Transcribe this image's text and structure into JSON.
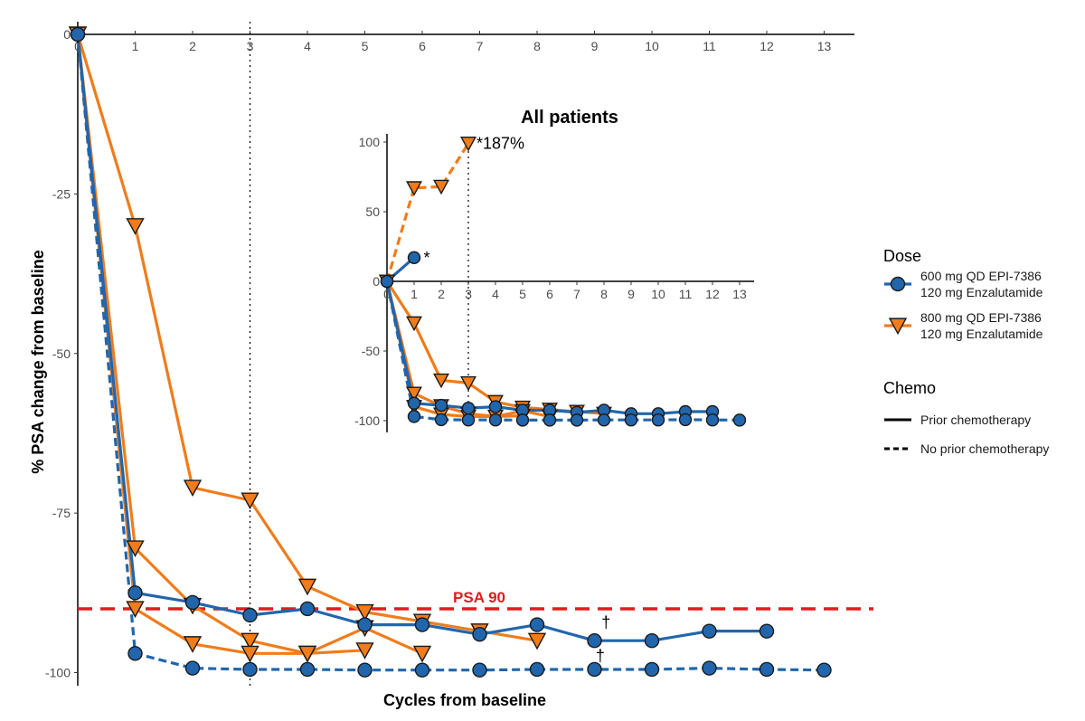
{
  "chart_data": {
    "type": "line",
    "colors": {
      "dose600": "#2166ac",
      "dose800": "#f07c1b",
      "psa90": "#e41a1c"
    },
    "xlabel": "Cycles from baseline",
    "ylabel": "% PSA change from baseline",
    "x_ticks": [
      0,
      1,
      2,
      3,
      4,
      5,
      6,
      7,
      8,
      9,
      10,
      11,
      12,
      13
    ],
    "y_ticks": [
      0,
      -25,
      -50,
      -75,
      -100
    ],
    "y_tick_labels": [
      "0",
      "-25",
      "-50",
      "-75",
      "-100"
    ],
    "xlim": [
      0,
      13.5
    ],
    "ylim": [
      -102,
      0
    ],
    "reference_line": {
      "y": -90,
      "label": "PSA 90"
    },
    "vertical_line_x": 3,
    "annotations": [
      {
        "text": "†",
        "x": 9.2,
        "y": -93
      },
      {
        "text": "†",
        "x": 9.1,
        "y": -98.2
      }
    ],
    "series": [
      {
        "dose": "800",
        "chemo": "prior",
        "points": [
          [
            0,
            0
          ],
          [
            1,
            -30
          ],
          [
            2,
            -71
          ],
          [
            3,
            -73
          ],
          [
            4,
            -86.5
          ],
          [
            5,
            -90.5
          ],
          [
            6,
            -92
          ],
          [
            7,
            -93.5
          ],
          [
            8,
            -95
          ]
        ]
      },
      {
        "dose": "800",
        "chemo": "prior",
        "points": [
          [
            0,
            0
          ],
          [
            1,
            -80.5
          ],
          [
            2,
            -89.5
          ],
          [
            3,
            -95
          ],
          [
            4,
            -97
          ],
          [
            5,
            -96.5
          ]
        ]
      },
      {
        "dose": "800",
        "chemo": "prior",
        "points": [
          [
            0,
            0
          ],
          [
            1,
            -90
          ],
          [
            2,
            -95.5
          ],
          [
            3,
            -97
          ],
          [
            4,
            -97
          ],
          [
            5,
            -93
          ],
          [
            6,
            -97
          ]
        ]
      },
      {
        "dose": "600",
        "chemo": "prior",
        "points": [
          [
            0,
            0
          ],
          [
            1,
            -87.5
          ],
          [
            2,
            -89
          ],
          [
            3,
            -91
          ],
          [
            4,
            -90
          ],
          [
            5,
            -92.5
          ],
          [
            6,
            -92.5
          ],
          [
            7,
            -94
          ],
          [
            8,
            -92.5
          ],
          [
            9,
            -95
          ],
          [
            10,
            -95
          ],
          [
            11,
            -93.5
          ],
          [
            12,
            -93.5
          ]
        ]
      },
      {
        "dose": "600",
        "chemo": "none",
        "points": [
          [
            0,
            0
          ],
          [
            1,
            -97
          ],
          [
            2,
            -99.3
          ],
          [
            3,
            -99.5
          ],
          [
            4,
            -99.5
          ],
          [
            5,
            -99.6
          ],
          [
            6,
            -99.6
          ],
          [
            7,
            -99.6
          ],
          [
            8,
            -99.5
          ],
          [
            9,
            -99.5
          ],
          [
            10,
            -99.5
          ],
          [
            11,
            -99.3
          ],
          [
            12,
            -99.5
          ],
          [
            13,
            -99.6
          ]
        ]
      }
    ],
    "inset": {
      "title": "All patients",
      "x_ticks": [
        0,
        1,
        2,
        3,
        4,
        5,
        6,
        7,
        8,
        9,
        10,
        11,
        12,
        13
      ],
      "y_ticks": [
        100,
        50,
        0,
        -50,
        -100
      ],
      "y_tick_labels": [
        "100",
        "50",
        "0",
        "-50",
        "-100"
      ],
      "xlim": [
        0,
        13.5
      ],
      "ylim": [
        -103,
        104
      ],
      "vertical_line_x": 3,
      "annotations": [
        {
          "text": "*187%",
          "x": 3.3,
          "y": 99
        },
        {
          "text": "*",
          "x": 1.35,
          "y": 17
        }
      ],
      "series": [
        {
          "dose": "800",
          "chemo": "none",
          "points": [
            [
              0,
              0
            ],
            [
              1,
              67
            ],
            [
              2,
              68
            ],
            [
              3,
              99
            ]
          ]
        },
        {
          "dose": "600",
          "chemo": "prior",
          "points": [
            [
              0,
              0
            ],
            [
              1,
              17
            ]
          ]
        },
        {
          "dose": "800",
          "chemo": "prior",
          "points": [
            [
              0,
              0
            ],
            [
              1,
              -30
            ],
            [
              2,
              -71
            ],
            [
              3,
              -73
            ],
            [
              4,
              -86.5
            ],
            [
              5,
              -90.5
            ],
            [
              6,
              -92
            ],
            [
              7,
              -93.5
            ],
            [
              8,
              -95
            ]
          ]
        },
        {
          "dose": "800",
          "chemo": "prior",
          "points": [
            [
              0,
              0
            ],
            [
              1,
              -80.5
            ],
            [
              2,
              -89.5
            ],
            [
              3,
              -95
            ],
            [
              4,
              -97
            ],
            [
              5,
              -96.5
            ]
          ]
        },
        {
          "dose": "800",
          "chemo": "prior",
          "points": [
            [
              0,
              0
            ],
            [
              1,
              -90
            ],
            [
              2,
              -95.5
            ],
            [
              3,
              -97
            ],
            [
              4,
              -97
            ],
            [
              5,
              -93
            ],
            [
              6,
              -97
            ]
          ]
        },
        {
          "dose": "600",
          "chemo": "prior",
          "points": [
            [
              0,
              0
            ],
            [
              1,
              -87.5
            ],
            [
              2,
              -89
            ],
            [
              3,
              -91
            ],
            [
              4,
              -90
            ],
            [
              5,
              -92.5
            ],
            [
              6,
              -92.5
            ],
            [
              7,
              -94
            ],
            [
              8,
              -92.5
            ],
            [
              9,
              -95
            ],
            [
              10,
              -95
            ],
            [
              11,
              -93.5
            ],
            [
              12,
              -93.5
            ]
          ]
        },
        {
          "dose": "600",
          "chemo": "none",
          "points": [
            [
              0,
              0
            ],
            [
              1,
              -97
            ],
            [
              2,
              -99.3
            ],
            [
              3,
              -99.5
            ],
            [
              4,
              -99.5
            ],
            [
              5,
              -99.6
            ],
            [
              6,
              -99.6
            ],
            [
              7,
              -99.6
            ],
            [
              8,
              -99.5
            ],
            [
              9,
              -99.5
            ],
            [
              10,
              -99.5
            ],
            [
              11,
              -99.3
            ],
            [
              12,
              -99.5
            ],
            [
              13,
              -99.6
            ]
          ]
        }
      ]
    },
    "legend": {
      "placement": "right",
      "dose_title": "Dose",
      "dose_items": [
        {
          "key": "600",
          "line1": "600 mg QD EPI-7386",
          "line2": "120 mg Enzalutamide"
        },
        {
          "key": "800",
          "line1": "800 mg QD EPI-7386",
          "line2": "120 mg Enzalutamide"
        }
      ],
      "chemo_title": "Chemo",
      "chemo_items": [
        {
          "key": "prior",
          "label": "Prior chemotherapy"
        },
        {
          "key": "none",
          "label": "No prior chemotherapy"
        }
      ]
    }
  }
}
